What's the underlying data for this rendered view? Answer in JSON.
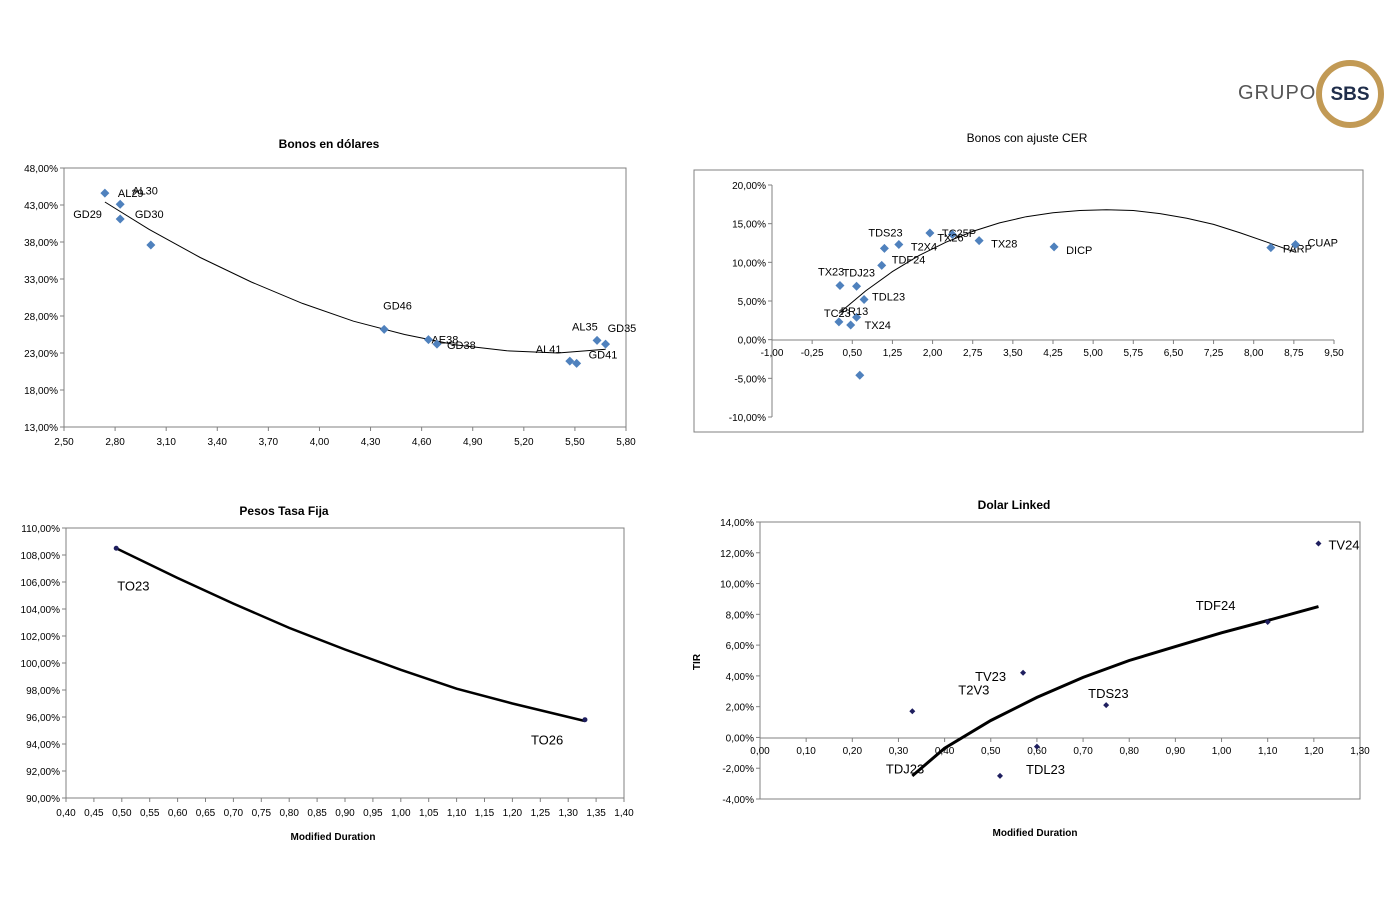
{
  "logo": {
    "grupo": "GRUPO",
    "sbs": "SBS"
  },
  "colors": {
    "blue_marker": "#4f81bd",
    "dark_marker": "#1f1f5f",
    "axis": "#808080",
    "trend": "#000000",
    "ring": "#c29a55"
  },
  "chart_data": [
    {
      "type": "scatter",
      "title": "Bonos en dólares",
      "xlabel": "",
      "ylabel": "",
      "xlim": [
        2.5,
        5.8
      ],
      "ylim": [
        13,
        48
      ],
      "x_ticks": [
        "2,50",
        "2,80",
        "3,10",
        "3,40",
        "3,70",
        "4,00",
        "4,30",
        "4,60",
        "4,90",
        "5,20",
        "5,50",
        "5,80"
      ],
      "y_ticks": [
        "13,00%",
        "18,00%",
        "23,00%",
        "28,00%",
        "33,00%",
        "38,00%",
        "43,00%",
        "48,00%"
      ],
      "points": [
        {
          "label": "AL29",
          "x": 2.74,
          "y": 44.6
        },
        {
          "label": "AL30",
          "x": 2.83,
          "y": 43.1
        },
        {
          "label": "GD29",
          "x": 2.83,
          "y": 41.1
        },
        {
          "label": "GD30",
          "x": 3.01,
          "y": 37.6
        },
        {
          "label": "GD46",
          "x": 4.38,
          "y": 26.2
        },
        {
          "label": "AE38",
          "x": 4.64,
          "y": 24.8
        },
        {
          "label": "GD38",
          "x": 4.69,
          "y": 24.2
        },
        {
          "label": "AL35",
          "x": 5.63,
          "y": 24.7
        },
        {
          "label": "GD35",
          "x": 5.68,
          "y": 24.2
        },
        {
          "label": "AL41",
          "x": 5.47,
          "y": 21.9
        },
        {
          "label": "GD41",
          "x": 5.51,
          "y": 21.6
        }
      ],
      "trendline": [
        [
          2.74,
          43.4
        ],
        [
          3.0,
          39.7
        ],
        [
          3.3,
          35.9
        ],
        [
          3.6,
          32.6
        ],
        [
          3.9,
          29.7
        ],
        [
          4.2,
          27.3
        ],
        [
          4.5,
          25.5
        ],
        [
          4.8,
          24.1
        ],
        [
          5.1,
          23.3
        ],
        [
          5.4,
          23.0
        ],
        [
          5.68,
          23.5
        ]
      ]
    },
    {
      "type": "scatter",
      "title": "Bonos con ajuste CER",
      "xlabel": "",
      "ylabel": "",
      "xlim": [
        -1.0,
        9.5
      ],
      "ylim": [
        -10,
        20
      ],
      "x_ticks": [
        "-1,00",
        "-0,25",
        "0,50",
        "1,25",
        "2,00",
        "2,75",
        "3,50",
        "4,25",
        "5,00",
        "5,75",
        "6,50",
        "7,25",
        "8,00",
        "8,75",
        "9,50"
      ],
      "y_ticks": [
        "-10,00%",
        "-5,00%",
        "0,00%",
        "5,00%",
        "10,00%",
        "15,00%",
        "20,00%"
      ],
      "points": [
        {
          "label": "TX23",
          "x": 0.27,
          "y": 7.0
        },
        {
          "label": "TDJ23",
          "x": 0.58,
          "y": 6.9
        },
        {
          "label": "TDS23",
          "x": 1.1,
          "y": 11.8
        },
        {
          "label": "TDF24",
          "x": 1.05,
          "y": 9.6
        },
        {
          "label": "TDL23",
          "x": 0.72,
          "y": 5.2
        },
        {
          "label": "TX24",
          "x": 0.58,
          "y": 2.9
        },
        {
          "label": "TC23",
          "x": 0.25,
          "y": 2.3
        },
        {
          "label": "PR13",
          "x": 0.47,
          "y": 1.9
        },
        {
          "label": "",
          "x": 0.64,
          "y": -4.6
        },
        {
          "label": "T2X4",
          "x": 1.37,
          "y": 12.3
        },
        {
          "label": "TC25P",
          "x": 1.95,
          "y": 13.8
        },
        {
          "label": "TX26",
          "x": 2.37,
          "y": 13.6
        },
        {
          "label": "TX28",
          "x": 2.87,
          "y": 12.8
        },
        {
          "label": "DICP",
          "x": 4.27,
          "y": 12.0
        },
        {
          "label": "PARP",
          "x": 8.32,
          "y": 11.9
        },
        {
          "label": "CUAP",
          "x": 8.78,
          "y": 12.3
        }
      ],
      "trendline": [
        [
          0.25,
          3.4
        ],
        [
          0.75,
          6.3
        ],
        [
          1.25,
          8.8
        ],
        [
          1.75,
          10.9
        ],
        [
          2.25,
          12.6
        ],
        [
          2.75,
          14.0
        ],
        [
          3.25,
          15.1
        ],
        [
          3.75,
          15.9
        ],
        [
          4.25,
          16.4
        ],
        [
          4.75,
          16.7
        ],
        [
          5.25,
          16.8
        ],
        [
          5.75,
          16.7
        ],
        [
          6.25,
          16.3
        ],
        [
          6.75,
          15.7
        ],
        [
          7.25,
          14.9
        ],
        [
          7.75,
          13.8
        ],
        [
          8.25,
          12.6
        ],
        [
          8.78,
          11.3
        ]
      ]
    },
    {
      "type": "line",
      "title": "Pesos Tasa Fija",
      "xlabel": "Modified Duration",
      "ylabel": "",
      "xlim": [
        0.4,
        1.4
      ],
      "ylim": [
        90,
        110
      ],
      "x_ticks": [
        "0,40",
        "0,45",
        "0,50",
        "0,55",
        "0,60",
        "0,65",
        "0,70",
        "0,75",
        "0,80",
        "0,85",
        "0,90",
        "0,95",
        "1,00",
        "1,05",
        "1,10",
        "1,15",
        "1,20",
        "1,25",
        "1,30",
        "1,35",
        "1,40"
      ],
      "y_ticks": [
        "90,00%",
        "92,00%",
        "94,00%",
        "96,00%",
        "98,00%",
        "100,00%",
        "102,00%",
        "104,00%",
        "106,00%",
        "108,00%",
        "110,00%"
      ],
      "points": [
        {
          "label": "TO23",
          "x": 0.49,
          "y": 108.5
        },
        {
          "label": "TO26",
          "x": 1.33,
          "y": 95.8
        }
      ],
      "trendline": [
        [
          0.49,
          108.5
        ],
        [
          0.6,
          106.3
        ],
        [
          0.7,
          104.4
        ],
        [
          0.8,
          102.6
        ],
        [
          0.9,
          101.0
        ],
        [
          1.0,
          99.5
        ],
        [
          1.1,
          98.1
        ],
        [
          1.2,
          97.0
        ],
        [
          1.33,
          95.7
        ]
      ]
    },
    {
      "type": "scatter",
      "title": "Dolar Linked",
      "xlabel": "Modified Duration",
      "ylabel": "TIR",
      "xlim": [
        0,
        1.3
      ],
      "ylim": [
        -4,
        14
      ],
      "x_ticks": [
        "0,00",
        "0,10",
        "0,20",
        "0,30",
        "0,40",
        "0,50",
        "0,60",
        "0,70",
        "0,80",
        "0,90",
        "1,00",
        "1,10",
        "1,20",
        "1,30"
      ],
      "y_ticks": [
        "-4,00%",
        "-2,00%",
        "0,00%",
        "2,00%",
        "4,00%",
        "6,00%",
        "8,00%",
        "10,00%",
        "12,00%",
        "14,00%"
      ],
      "points": [
        {
          "label": "TV24",
          "x": 1.21,
          "y": 12.6
        },
        {
          "label": "TDF24",
          "x": 1.1,
          "y": 7.5
        },
        {
          "label": "TV23",
          "x": 0.57,
          "y": 4.2
        },
        {
          "label": "T2V3",
          "x": 0.33,
          "y": 1.7
        },
        {
          "label": "TDS23",
          "x": 0.75,
          "y": 2.1
        },
        {
          "label": "TDJ23",
          "x": 0.6,
          "y": -0.6
        },
        {
          "label": "TDL23",
          "x": 0.52,
          "y": -2.5
        }
      ],
      "trendline": [
        [
          0.33,
          -2.5
        ],
        [
          0.4,
          -0.7
        ],
        [
          0.5,
          1.1
        ],
        [
          0.6,
          2.6
        ],
        [
          0.7,
          3.9
        ],
        [
          0.8,
          5.0
        ],
        [
          0.9,
          5.9
        ],
        [
          1.0,
          6.8
        ],
        [
          1.1,
          7.6
        ],
        [
          1.21,
          8.5
        ]
      ]
    }
  ]
}
